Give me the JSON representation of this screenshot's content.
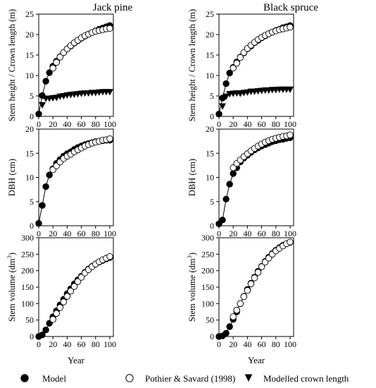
{
  "figure": {
    "column_titles": [
      "Jack pine",
      "Black spruce"
    ],
    "row_labels": [
      "Stem height / Crown length (m)",
      "DBH (cm)",
      "Stem volume (dm³)"
    ],
    "x_label": "Year"
  },
  "legend": {
    "model": "Model",
    "pothier": "Pothier & Savard (1998)",
    "crown": "Modelled crown length"
  },
  "chart_data": [
    {
      "type": "line",
      "title": "Jack pine",
      "ylabel": "Stem height / Crown length (m)",
      "xlim": [
        0,
        105
      ],
      "ylim": [
        0,
        25
      ],
      "xticks": [
        0,
        20,
        40,
        60,
        80,
        100
      ],
      "yticks": [
        0,
        5,
        10,
        15,
        20,
        25
      ],
      "series": [
        {
          "name": "Model",
          "marker": "filled-circle",
          "line": true,
          "x": [
            0,
            5,
            10,
            15,
            20,
            25,
            30,
            35,
            40,
            45,
            50,
            55,
            60,
            65,
            70,
            75,
            80,
            85,
            90,
            95,
            100
          ],
          "y": [
            0.6,
            5.1,
            8.6,
            10.7,
            12.3,
            13.5,
            14.6,
            15.6,
            16.5,
            17.2,
            17.9,
            18.5,
            19.1,
            19.6,
            20.1,
            20.5,
            20.9,
            21.3,
            21.6,
            21.9,
            22.2
          ]
        },
        {
          "name": "Pothier & Savard (1998)",
          "marker": "open-circle",
          "line": false,
          "x": [
            20,
            25,
            30,
            35,
            40,
            45,
            50,
            55,
            60,
            65,
            70,
            75,
            80,
            85,
            90,
            95,
            100
          ],
          "y": [
            11.8,
            13.2,
            14.5,
            15.6,
            16.5,
            17.3,
            18.0,
            18.6,
            19.2,
            19.7,
            20.1,
            20.5,
            20.8,
            21.0,
            21.2,
            21.4,
            21.5
          ]
        },
        {
          "name": "Modelled crown length",
          "marker": "filled-triangle-down",
          "line": false,
          "x": [
            5,
            10,
            15,
            20,
            25,
            30,
            35,
            40,
            45,
            50,
            55,
            60,
            65,
            70,
            75,
            80,
            85,
            90,
            95,
            100
          ],
          "y": [
            2.8,
            4.4,
            4.4,
            4.5,
            4.6,
            4.9,
            5.0,
            5.2,
            5.3,
            5.4,
            5.5,
            5.6,
            5.7,
            5.7,
            5.8,
            5.8,
            5.9,
            6.0,
            6.0,
            6.0
          ]
        }
      ]
    },
    {
      "type": "line",
      "title": "Black spruce",
      "ylabel": "Stem height / Crown length (m)",
      "xlim": [
        0,
        105
      ],
      "ylim": [
        0,
        25
      ],
      "xticks": [
        0,
        20,
        40,
        60,
        80,
        100
      ],
      "yticks": [
        0,
        5,
        10,
        15,
        20,
        25
      ],
      "series": [
        {
          "name": "Model",
          "marker": "filled-circle",
          "line": true,
          "x": [
            0,
            5,
            10,
            15,
            20,
            25,
            30,
            35,
            40,
            45,
            50,
            55,
            60,
            65,
            70,
            75,
            80,
            85,
            90,
            95,
            100
          ],
          "y": [
            0.6,
            4.5,
            8.0,
            10.6,
            12.0,
            13.3,
            14.5,
            15.5,
            16.5,
            17.2,
            18.0,
            18.6,
            19.2,
            19.7,
            20.2,
            20.6,
            21.0,
            21.3,
            21.7,
            21.9,
            22.2
          ]
        },
        {
          "name": "Pothier & Savard (1998)",
          "marker": "open-circle",
          "line": false,
          "x": [
            20,
            25,
            30,
            35,
            40,
            45,
            50,
            55,
            60,
            65,
            70,
            75,
            80,
            85,
            90,
            95,
            100
          ],
          "y": [
            11.8,
            13.0,
            14.4,
            15.6,
            16.6,
            17.4,
            18.1,
            18.8,
            19.3,
            19.8,
            20.2,
            20.6,
            20.9,
            21.2,
            21.4,
            21.6,
            21.8
          ]
        },
        {
          "name": "Modelled crown length",
          "marker": "filled-triangle-down",
          "line": false,
          "x": [
            5,
            10,
            15,
            20,
            25,
            30,
            35,
            40,
            45,
            50,
            55,
            60,
            65,
            70,
            75,
            80,
            85,
            90,
            95,
            100
          ],
          "y": [
            2.5,
            4.9,
            5.5,
            5.6,
            5.7,
            5.6,
            5.8,
            5.9,
            6.1,
            6.1,
            6.2,
            6.3,
            6.4,
            6.4,
            6.5,
            6.5,
            6.6,
            6.6,
            6.6,
            6.6
          ]
        }
      ]
    },
    {
      "type": "line",
      "title": "",
      "ylabel": "DBH (cm)",
      "xlim": [
        0,
        105
      ],
      "ylim": [
        0,
        20
      ],
      "xticks": [
        0,
        20,
        40,
        60,
        80,
        100
      ],
      "yticks": [
        0,
        5,
        10,
        15,
        20
      ],
      "series": [
        {
          "name": "Model",
          "marker": "filled-circle",
          "line": true,
          "x": [
            0,
            5,
            10,
            15,
            20,
            25,
            30,
            35,
            40,
            45,
            50,
            55,
            60,
            65,
            70,
            75,
            80,
            85,
            90,
            95,
            100
          ],
          "y": [
            0.5,
            4.2,
            8.1,
            10.5,
            11.8,
            12.9,
            13.7,
            14.4,
            14.9,
            15.3,
            15.8,
            16.2,
            16.5,
            16.8,
            17.0,
            17.2,
            17.4,
            17.5,
            17.6,
            17.7,
            17.7
          ]
        },
        {
          "name": "Pothier & Savard (1998)",
          "marker": "open-circle",
          "line": false,
          "x": [
            20,
            25,
            30,
            35,
            40,
            45,
            50,
            55,
            60,
            65,
            70,
            75,
            80,
            85,
            90,
            95,
            100
          ],
          "y": [
            11.6,
            12.4,
            13.2,
            13.9,
            14.4,
            14.8,
            15.3,
            15.7,
            16.1,
            16.5,
            16.8,
            17.1,
            17.3,
            17.5,
            17.7,
            17.8,
            18.0
          ]
        }
      ]
    },
    {
      "type": "line",
      "title": "",
      "ylabel": "DBH (cm)",
      "xlim": [
        0,
        105
      ],
      "ylim": [
        0,
        20
      ],
      "xticks": [
        0,
        20,
        40,
        60,
        80,
        100
      ],
      "yticks": [
        0,
        5,
        10,
        15,
        20
      ],
      "series": [
        {
          "name": "Model",
          "marker": "filled-circle",
          "line": true,
          "x": [
            0,
            5,
            10,
            15,
            20,
            25,
            30,
            35,
            40,
            45,
            50,
            55,
            60,
            65,
            70,
            75,
            80,
            85,
            90,
            95,
            100
          ],
          "y": [
            0.4,
            1.2,
            5.5,
            8.6,
            10.8,
            12.0,
            13.2,
            14.0,
            14.6,
            15.2,
            15.7,
            16.1,
            16.5,
            16.8,
            17.1,
            17.4,
            17.6,
            17.8,
            17.9,
            18.1,
            18.2
          ]
        },
        {
          "name": "Pothier & Savard (1998)",
          "marker": "open-circle",
          "line": false,
          "x": [
            20,
            25,
            30,
            35,
            40,
            45,
            50,
            55,
            60,
            65,
            70,
            75,
            80,
            85,
            90,
            95,
            100
          ],
          "y": [
            12.0,
            12.9,
            13.6,
            14.3,
            14.9,
            15.5,
            16.0,
            16.5,
            16.9,
            17.3,
            17.6,
            17.9,
            18.1,
            18.3,
            18.5,
            18.6,
            18.8
          ]
        }
      ]
    },
    {
      "type": "line",
      "title": "",
      "ylabel": "Stem volume (dm³)",
      "xlim": [
        0,
        105
      ],
      "ylim": [
        0,
        300
      ],
      "xticks": [
        0,
        20,
        40,
        60,
        80,
        100
      ],
      "yticks": [
        0,
        50,
        100,
        150,
        200,
        250,
        300
      ],
      "series": [
        {
          "name": "Model",
          "marker": "filled-circle",
          "line": true,
          "x": [
            0,
            5,
            10,
            15,
            20,
            25,
            30,
            35,
            40,
            45,
            50,
            55,
            60,
            65,
            70,
            75,
            80,
            85,
            90,
            95,
            100
          ],
          "y": [
            0,
            5,
            20,
            40,
            60,
            78,
            96,
            113,
            130,
            145,
            160,
            172,
            183,
            195,
            205,
            213,
            220,
            226,
            231,
            236,
            240
          ]
        },
        {
          "name": "Pothier & Savard (1998)",
          "marker": "open-circle",
          "line": false,
          "x": [
            20,
            25,
            30,
            35,
            40,
            45,
            50,
            55,
            60,
            65,
            70,
            75,
            80,
            85,
            90,
            95,
            100
          ],
          "y": [
            52,
            70,
            88,
            105,
            122,
            138,
            152,
            167,
            180,
            193,
            203,
            212,
            220,
            227,
            233,
            238,
            243
          ]
        }
      ]
    },
    {
      "type": "line",
      "title": "",
      "ylabel": "Stem volume (dm³)",
      "xlim": [
        0,
        105
      ],
      "ylim": [
        0,
        300
      ],
      "xticks": [
        0,
        20,
        40,
        60,
        80,
        100
      ],
      "yticks": [
        0,
        50,
        100,
        150,
        200,
        250,
        300
      ],
      "series": [
        {
          "name": "Model",
          "marker": "filled-circle",
          "line": true,
          "x": [
            0,
            5,
            10,
            15,
            20,
            25,
            30,
            35,
            40,
            45,
            50,
            55,
            60,
            65,
            70,
            75,
            80,
            85,
            90,
            95,
            100
          ],
          "y": [
            0,
            2,
            10,
            30,
            52,
            75,
            100,
            122,
            143,
            162,
            180,
            198,
            213,
            228,
            241,
            252,
            262,
            270,
            277,
            282,
            286
          ]
        },
        {
          "name": "Pothier & Savard (1998)",
          "marker": "open-circle",
          "line": false,
          "x": [
            20,
            25,
            30,
            35,
            40,
            45,
            50,
            55,
            60,
            65,
            70,
            75,
            80,
            85,
            90,
            95,
            100
          ],
          "y": [
            60,
            80,
            100,
            121,
            140,
            160,
            178,
            195,
            212,
            226,
            238,
            250,
            260,
            268,
            275,
            282,
            287
          ]
        }
      ]
    }
  ]
}
